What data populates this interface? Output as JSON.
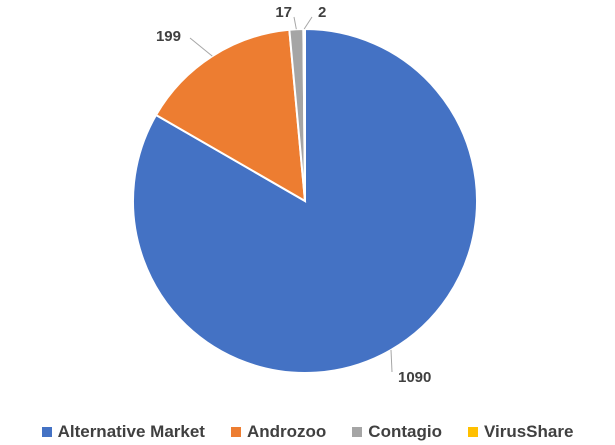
{
  "chart_data": {
    "type": "pie",
    "title": "",
    "categories": [
      "Alternative Market",
      "Androzoo",
      "Contagio",
      "VirusShare"
    ],
    "values": [
      1090,
      199,
      17,
      2
    ],
    "data_labels": [
      "1090",
      "199",
      "17",
      "2"
    ],
    "colors": [
      "#4472C4",
      "#ED7D31",
      "#A5A5A5",
      "#FFC000"
    ],
    "legend_position": "bottom",
    "start_angle_deg": 0,
    "direction": "clockwise"
  }
}
